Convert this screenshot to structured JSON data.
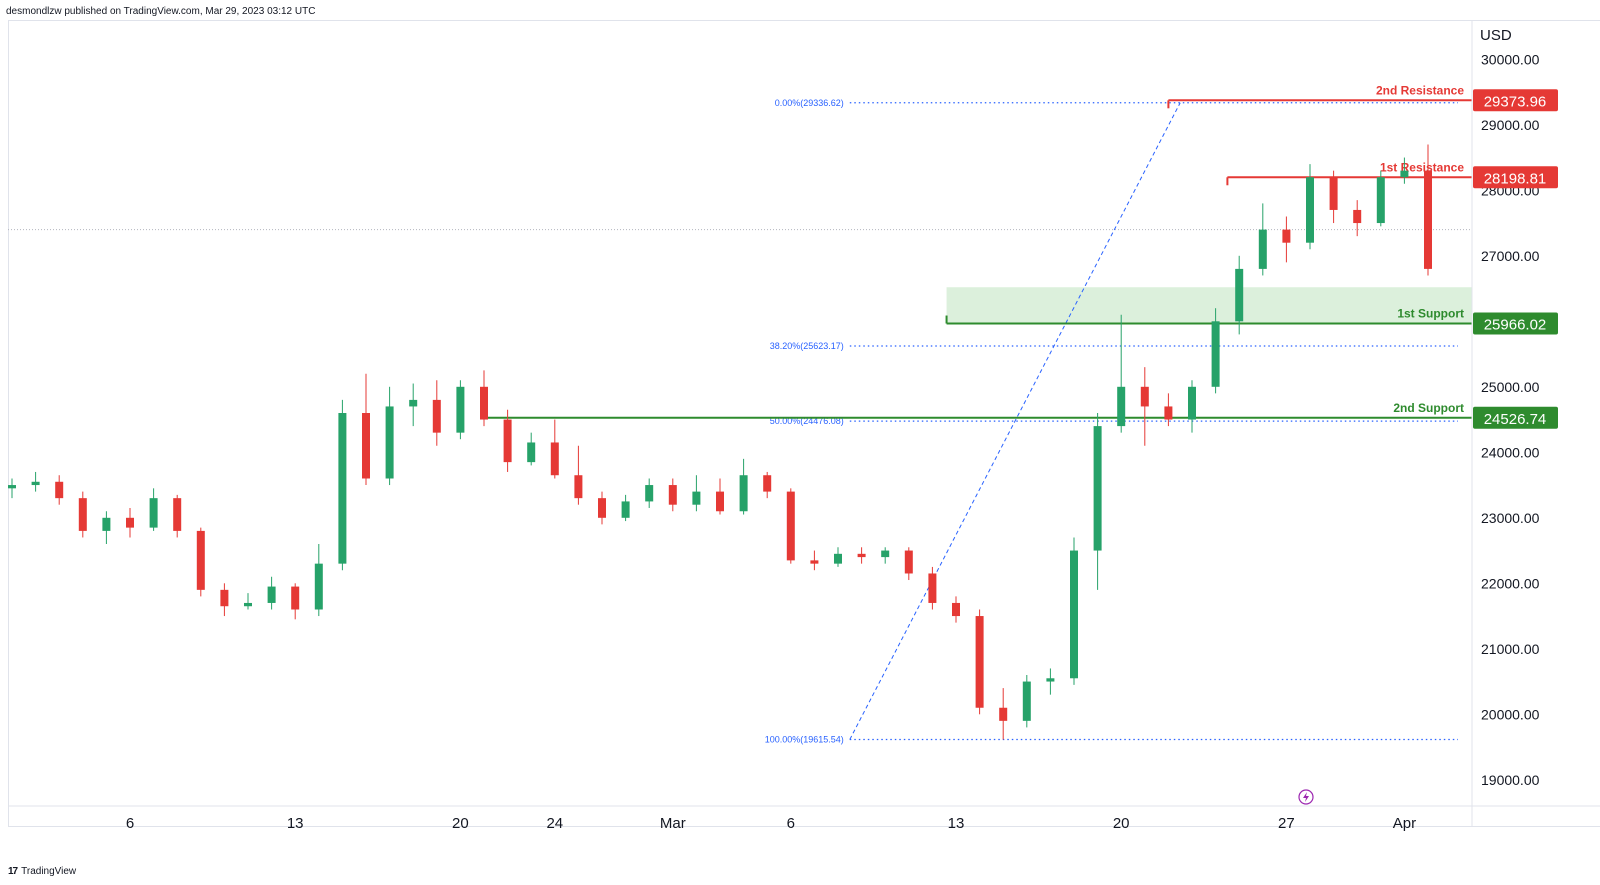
{
  "header": {
    "published_by": "desmondlzw published on TradingView.com, Mar 29, 2023 03:12 UTC"
  },
  "footer": {
    "brand_logo": "17",
    "brand": "TradingView"
  },
  "colors": {
    "up": "#26a269",
    "down": "#e53935",
    "resistance": "#e53935",
    "support": "#2e8b2e",
    "fib": "#2962ff",
    "zone": "#d3ecd3"
  },
  "chart_data": {
    "type": "candlestick",
    "symbol_currency": "USD",
    "ylim": [
      18600,
      30600
    ],
    "y_ticks": [
      "30000.00",
      "29000.00",
      "28000.00",
      "27000.00",
      "25000.00",
      "24000.00",
      "23000.00",
      "22000.00",
      "21000.00",
      "20000.00",
      "19000.00"
    ],
    "x_ticks": [
      "6",
      "13",
      "20",
      "24",
      "Mar",
      "6",
      "13",
      "20",
      "27",
      "Apr"
    ],
    "x_tick_index": [
      5,
      12,
      19,
      23,
      28,
      33,
      40,
      47,
      54,
      59
    ],
    "last_price": 27400,
    "levels": [
      {
        "name": "2nd Resistance",
        "price": 29373.96,
        "label": "29373.96",
        "kind": "resistance",
        "start_index": 49
      },
      {
        "name": "1st Resistance",
        "price": 28198.81,
        "label": "28198.81",
        "kind": "resistance",
        "start_index": 51.5
      },
      {
        "name": "1st Support",
        "price": 25966.02,
        "label": "25966.02",
        "kind": "support",
        "start_index": 39.6
      },
      {
        "name": "2nd Support",
        "price": 24526.74,
        "label": "24526.74",
        "kind": "support",
        "start_index": 19.9
      }
    ],
    "support_zone": {
      "from": 25966.02,
      "to": 26520,
      "start_index": 39.6
    },
    "fib_levels": [
      {
        "label": "0.00%(29336.62)",
        "price": 29336.62
      },
      {
        "label": "38.20%(25623.17)",
        "price": 25623.17
      },
      {
        "label": "50.00%(24476.08)",
        "price": 24476.08
      },
      {
        "label": "100.00%(19615.54)",
        "price": 19615.54
      }
    ],
    "fib_line": {
      "from_index": 35.5,
      "from_price": 19615.54,
      "to_index": 49.5,
      "to_price": 29336.62
    },
    "candles": [
      {
        "o": 23450,
        "h": 23600,
        "l": 23300,
        "c": 23500
      },
      {
        "o": 23500,
        "h": 23700,
        "l": 23400,
        "c": 23550
      },
      {
        "o": 23550,
        "h": 23650,
        "l": 23200,
        "c": 23300
      },
      {
        "o": 23300,
        "h": 23400,
        "l": 22700,
        "c": 22800
      },
      {
        "o": 22800,
        "h": 23100,
        "l": 22600,
        "c": 23000
      },
      {
        "o": 23000,
        "h": 23150,
        "l": 22700,
        "c": 22850
      },
      {
        "o": 22850,
        "h": 23450,
        "l": 22800,
        "c": 23300
      },
      {
        "o": 23300,
        "h": 23350,
        "l": 22700,
        "c": 22800
      },
      {
        "o": 22800,
        "h": 22850,
        "l": 21800,
        "c": 21900
      },
      {
        "o": 21900,
        "h": 22000,
        "l": 21500,
        "c": 21650
      },
      {
        "o": 21650,
        "h": 21850,
        "l": 21600,
        "c": 21700
      },
      {
        "o": 21700,
        "h": 22100,
        "l": 21600,
        "c": 21950
      },
      {
        "o": 21950,
        "h": 22000,
        "l": 21450,
        "c": 21600
      },
      {
        "o": 21600,
        "h": 22600,
        "l": 21500,
        "c": 22300
      },
      {
        "o": 22300,
        "h": 24800,
        "l": 22200,
        "c": 24600
      },
      {
        "o": 24600,
        "h": 25200,
        "l": 23500,
        "c": 23600
      },
      {
        "o": 23600,
        "h": 25000,
        "l": 23500,
        "c": 24700
      },
      {
        "o": 24700,
        "h": 25050,
        "l": 24400,
        "c": 24800
      },
      {
        "o": 24800,
        "h": 25100,
        "l": 24100,
        "c": 24300
      },
      {
        "o": 24300,
        "h": 25100,
        "l": 24200,
        "c": 25000
      },
      {
        "o": 25000,
        "h": 25250,
        "l": 24400,
        "c": 24500
      },
      {
        "o": 24500,
        "h": 24650,
        "l": 23700,
        "c": 23850
      },
      {
        "o": 23850,
        "h": 24300,
        "l": 23800,
        "c": 24150
      },
      {
        "o": 24150,
        "h": 24500,
        "l": 23600,
        "c": 23650
      },
      {
        "o": 23650,
        "h": 24100,
        "l": 23200,
        "c": 23300
      },
      {
        "o": 23300,
        "h": 23400,
        "l": 22900,
        "c": 23000
      },
      {
        "o": 23000,
        "h": 23350,
        "l": 22950,
        "c": 23250
      },
      {
        "o": 23250,
        "h": 23600,
        "l": 23150,
        "c": 23500
      },
      {
        "o": 23500,
        "h": 23600,
        "l": 23100,
        "c": 23200
      },
      {
        "o": 23200,
        "h": 23650,
        "l": 23100,
        "c": 23400
      },
      {
        "o": 23400,
        "h": 23600,
        "l": 23050,
        "c": 23100
      },
      {
        "o": 23100,
        "h": 23900,
        "l": 23050,
        "c": 23650
      },
      {
        "o": 23650,
        "h": 23700,
        "l": 23300,
        "c": 23400
      },
      {
        "o": 23400,
        "h": 23450,
        "l": 22300,
        "c": 22350
      },
      {
        "o": 22350,
        "h": 22500,
        "l": 22200,
        "c": 22300
      },
      {
        "o": 22300,
        "h": 22550,
        "l": 22250,
        "c": 22450
      },
      {
        "o": 22450,
        "h": 22550,
        "l": 22300,
        "c": 22400
      },
      {
        "o": 22400,
        "h": 22550,
        "l": 22300,
        "c": 22500
      },
      {
        "o": 22500,
        "h": 22550,
        "l": 22050,
        "c": 22150
      },
      {
        "o": 22150,
        "h": 22250,
        "l": 21600,
        "c": 21700
      },
      {
        "o": 21700,
        "h": 21800,
        "l": 21400,
        "c": 21500
      },
      {
        "o": 21500,
        "h": 21600,
        "l": 20000,
        "c": 20100
      },
      {
        "o": 20100,
        "h": 20400,
        "l": 19615,
        "c": 19900
      },
      {
        "o": 19900,
        "h": 20600,
        "l": 19800,
        "c": 20500
      },
      {
        "o": 20500,
        "h": 20700,
        "l": 20300,
        "c": 20550
      },
      {
        "o": 20550,
        "h": 22700,
        "l": 20450,
        "c": 22500
      },
      {
        "o": 22500,
        "h": 24600,
        "l": 21900,
        "c": 24400
      },
      {
        "o": 24400,
        "h": 26100,
        "l": 24300,
        "c": 25000
      },
      {
        "o": 25000,
        "h": 25300,
        "l": 24100,
        "c": 24700
      },
      {
        "o": 24700,
        "h": 24900,
        "l": 24400,
        "c": 24500
      },
      {
        "o": 24500,
        "h": 25100,
        "l": 24300,
        "c": 25000
      },
      {
        "o": 25000,
        "h": 26200,
        "l": 24900,
        "c": 26000
      },
      {
        "o": 26000,
        "h": 27000,
        "l": 25800,
        "c": 26800
      },
      {
        "o": 26800,
        "h": 27800,
        "l": 26700,
        "c": 27400
      },
      {
        "o": 27400,
        "h": 27600,
        "l": 26900,
        "c": 27200
      },
      {
        "o": 27200,
        "h": 28400,
        "l": 27100,
        "c": 28200
      },
      {
        "o": 28200,
        "h": 28300,
        "l": 27500,
        "c": 27700
      },
      {
        "o": 27700,
        "h": 27850,
        "l": 27300,
        "c": 27500
      },
      {
        "o": 27500,
        "h": 28300,
        "l": 27450,
        "c": 28200
      },
      {
        "o": 28200,
        "h": 28500,
        "l": 28100,
        "c": 28300
      },
      {
        "o": 28300,
        "h": 28700,
        "l": 26700,
        "c": 26800
      }
    ]
  },
  "chart_extra": {
    "last_note": "candle series continues (window end)"
  }
}
